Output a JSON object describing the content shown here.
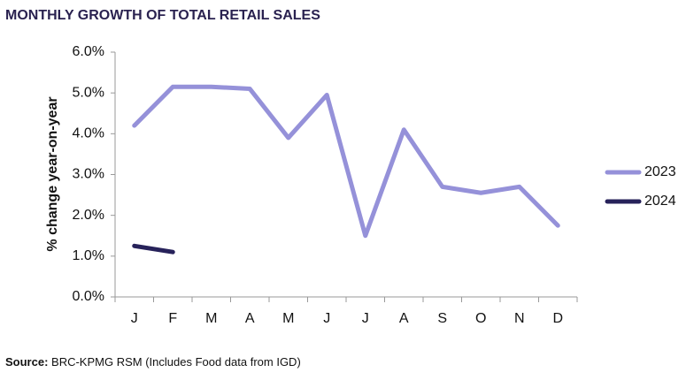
{
  "chart_data": {
    "type": "line",
    "title": "MONTHLY GROWTH OF TOTAL RETAIL SALES",
    "y_label": "% change year-on-year",
    "source_label": "Source:",
    "source_text": "BRC-KPMG RSM (Includes Food data from IGD)",
    "categories": [
      "J",
      "F",
      "M",
      "A",
      "M",
      "J",
      "J",
      "A",
      "S",
      "O",
      "N",
      "D"
    ],
    "series": [
      {
        "name": "2023",
        "color": "#9591d9",
        "values": [
          4.2,
          5.15,
          5.15,
          5.1,
          3.9,
          4.95,
          1.5,
          4.1,
          2.7,
          2.55,
          2.7,
          1.75
        ]
      },
      {
        "name": "2024",
        "color": "#27225a",
        "values": [
          1.25,
          1.1,
          null,
          null,
          null,
          null,
          null,
          null,
          null,
          null,
          null,
          null
        ]
      }
    ],
    "ylim": [
      0,
      6
    ],
    "yticks": [
      {
        "value": 0,
        "label": "0.0%"
      },
      {
        "value": 1,
        "label": "1.0%"
      },
      {
        "value": 2,
        "label": "2.0%"
      },
      {
        "value": 3,
        "label": "3.0%"
      },
      {
        "value": 4,
        "label": "4.0%"
      },
      {
        "value": 5,
        "label": "5.0%"
      },
      {
        "value": 6,
        "label": "6.0%"
      }
    ],
    "grid": false,
    "legend": "right"
  }
}
